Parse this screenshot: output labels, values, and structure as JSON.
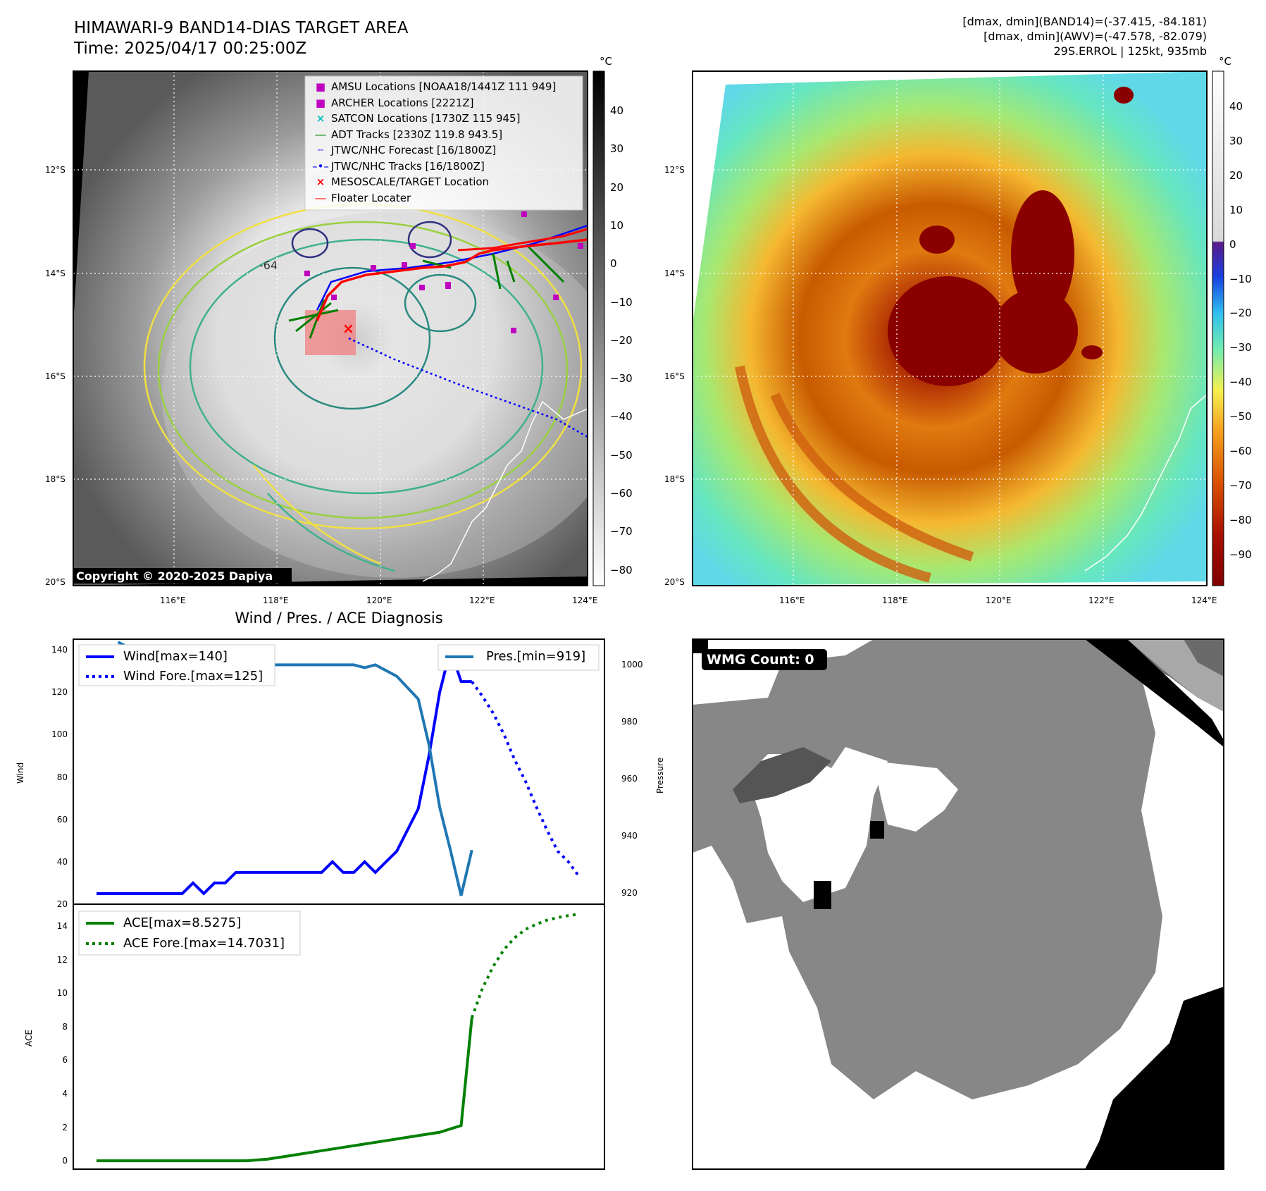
{
  "header": {
    "title": "HIMAWARI-9 BAND14-DIAS TARGET AREA",
    "time": "Time: 2025/04/17 00:25:00Z",
    "dmax_band14": "[dmax, dmin](BAND14)=(-37.415, -84.181)",
    "dmax_awv": "[dmax, dmin](AWV)=(-47.578, -82.079)",
    "storm": "29S.ERROL | 125kt, 935mb"
  },
  "map": {
    "lat_ticks": [
      "12°S",
      "14°S",
      "16°S",
      "18°S",
      "20°S"
    ],
    "lon_ticks": [
      "116°E",
      "118°E",
      "120°E",
      "122°E",
      "124°E"
    ],
    "copyright": "Copyright © 2020-2025 Dapiya",
    "contour_label": "-64",
    "legend": [
      {
        "label": "AMSU Locations [NOAA18/1441Z 111 949]",
        "color": "#c000c0",
        "marker": "square"
      },
      {
        "label": "ARCHER Locations [2221Z]",
        "color": "#c000c0",
        "marker": "square"
      },
      {
        "label": "SATCON Locations [1730Z 115 945]",
        "color": "#00c0c0",
        "marker": "x"
      },
      {
        "label": "ADT Tracks [2330Z 119.8 943.5]",
        "color": "#008000",
        "marker": "line"
      },
      {
        "label": "JTWC/NHC Forecast [16/1800Z]",
        "color": "#0000ff",
        "marker": "dotted"
      },
      {
        "label": "JTWC/NHC Tracks [16/1800Z]",
        "color": "#0000ff",
        "marker": "line-dot"
      },
      {
        "label": "MESOSCALE/TARGET Location",
        "color": "#ff0000",
        "marker": "x"
      },
      {
        "label": "Floater Locater",
        "color": "#ff0000",
        "marker": "line"
      }
    ]
  },
  "colorbars": {
    "unit": "°C",
    "left_ticks": [
      "40",
      "30",
      "20",
      "10",
      "0",
      "−10",
      "−20",
      "−30",
      "−40",
      "−50",
      "−60",
      "−70",
      "−80"
    ],
    "right_ticks": [
      "40",
      "30",
      "20",
      "10",
      "0",
      "−10",
      "−20",
      "−30",
      "−40",
      "−50",
      "−60",
      "−70",
      "−80",
      "−90"
    ]
  },
  "diag": {
    "title": "Wind / Pres. / ACE Diagnosis",
    "wmg": "WMG Count: 0"
  },
  "chart_data": [
    {
      "type": "line",
      "title": "Wind / Pres. / ACE Diagnosis",
      "ylabel": "Wind",
      "ylabel_right": "Pressure",
      "ylim": [
        20,
        145
      ],
      "ylim_right": [
        916,
        1009
      ],
      "yticks": [
        20,
        40,
        60,
        80,
        100,
        120,
        140
      ],
      "yticks_right": [
        920,
        940,
        960,
        980,
        1000
      ],
      "legend_left": "Wind[max=140]",
      "legend_fore": "Wind Fore.[max=125]",
      "legend_right": "Pres.[min=919]",
      "series": [
        {
          "name": "Wind[max=140]",
          "color": "#0000ff",
          "style": "solid",
          "x": [
            0,
            1,
            2,
            3,
            4,
            5,
            6,
            7,
            8,
            9,
            10,
            11,
            12,
            13,
            14,
            15,
            16,
            17,
            18,
            19,
            20,
            21,
            22,
            23,
            24,
            25,
            26,
            27,
            28,
            29,
            30,
            31,
            32,
            33,
            34,
            35
          ],
          "y": [
            25,
            25,
            25,
            25,
            25,
            25,
            25,
            25,
            25,
            30,
            25,
            30,
            30,
            35,
            35,
            35,
            35,
            35,
            35,
            35,
            35,
            35,
            40,
            35,
            35,
            40,
            35,
            40,
            45,
            55,
            65,
            90,
            120,
            140,
            125,
            125
          ]
        },
        {
          "name": "Wind Fore.[max=125]",
          "color": "#0000ff",
          "style": "dotted",
          "x": [
            35,
            36,
            37,
            38,
            39,
            40,
            41,
            42,
            43,
            44,
            45
          ],
          "y": [
            125,
            118,
            110,
            100,
            88,
            78,
            66,
            55,
            45,
            40,
            33
          ]
        },
        {
          "name": "Pres.[min=919]",
          "color": "#1f77b4",
          "style": "solid",
          "axis": "right",
          "x": [
            2,
            3,
            4,
            5,
            6,
            7,
            8,
            9,
            10,
            11,
            12,
            13,
            14,
            15,
            16,
            17,
            18,
            19,
            20,
            21,
            22,
            23,
            24,
            25,
            26,
            27,
            28,
            29,
            30,
            31,
            32,
            33,
            34,
            35
          ],
          "y": [
            1008,
            1006,
            1006,
            1004,
            1004,
            1002,
            1001,
            1000,
            1000,
            1000,
            1000,
            1000,
            1000,
            1000,
            1000,
            1000,
            1000,
            1000,
            1000,
            1000,
            1000,
            1000,
            1000,
            999,
            1000,
            998,
            996,
            992,
            988,
            972,
            950,
            935,
            919,
            935
          ]
        }
      ]
    },
    {
      "type": "line",
      "ylabel": "ACE",
      "ylim": [
        -0.5,
        15.3
      ],
      "yticks": [
        0,
        2,
        4,
        6,
        8,
        10,
        12,
        14
      ],
      "legend_left": "ACE[max=8.5275]",
      "legend_fore": "ACE Fore.[max=14.7031]",
      "series": [
        {
          "name": "ACE[max=8.5275]",
          "color": "#008000",
          "style": "solid",
          "x": [
            0,
            2,
            4,
            6,
            8,
            10,
            12,
            14,
            16,
            18,
            20,
            22,
            24,
            25,
            26,
            27,
            28,
            29,
            30,
            31,
            32,
            33,
            34,
            35
          ],
          "y": [
            0,
            0,
            0,
            0,
            0,
            0,
            0,
            0,
            0.1,
            0.3,
            0.5,
            0.7,
            0.9,
            1.0,
            1.1,
            1.2,
            1.3,
            1.4,
            1.5,
            1.6,
            1.7,
            1.9,
            2.1,
            8.5275
          ]
        },
        {
          "name": "ACE Fore.[max=14.7031]",
          "color": "#008000",
          "style": "dotted",
          "x": [
            35,
            36,
            37,
            38,
            39,
            40,
            41,
            42,
            43,
            44,
            45
          ],
          "y": [
            8.5275,
            10.3,
            11.6,
            12.6,
            13.3,
            13.8,
            14.1,
            14.35,
            14.5,
            14.62,
            14.7031
          ]
        }
      ]
    }
  ]
}
